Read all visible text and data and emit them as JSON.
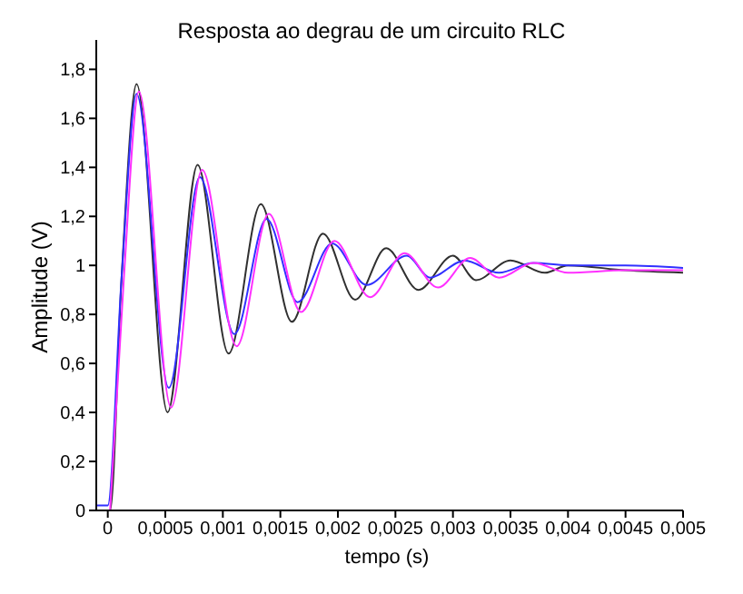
{
  "chart_data": {
    "type": "line",
    "title": "Resposta ao degrau de um circuito RLC",
    "xlabel": "tempo (s)",
    "ylabel": "Amplitude (V)",
    "xlim": [
      -0.0001,
      0.005
    ],
    "ylim": [
      0,
      1.92
    ],
    "xticks": [
      {
        "value": 0,
        "label": "0"
      },
      {
        "value": 0.0005,
        "label": "0,0005"
      },
      {
        "value": 0.001,
        "label": "0,001"
      },
      {
        "value": 0.0015,
        "label": "0,0015"
      },
      {
        "value": 0.002,
        "label": "0,002"
      },
      {
        "value": 0.0025,
        "label": "0,0025"
      },
      {
        "value": 0.003,
        "label": "0,003"
      },
      {
        "value": 0.0035,
        "label": "0,0035"
      },
      {
        "value": 0.004,
        "label": "0,004"
      },
      {
        "value": 0.0045,
        "label": "0,0045"
      },
      {
        "value": 0.005,
        "label": "0,005"
      }
    ],
    "yticks": [
      {
        "value": 0,
        "label": "0"
      },
      {
        "value": 0.2,
        "label": "0,2"
      },
      {
        "value": 0.4,
        "label": "0,4"
      },
      {
        "value": 0.6,
        "label": "0,6"
      },
      {
        "value": 0.8,
        "label": "0,8"
      },
      {
        "value": 1,
        "label": "1"
      },
      {
        "value": 1.2,
        "label": "1,2"
      },
      {
        "value": 1.4,
        "label": "1,4"
      },
      {
        "value": 1.6,
        "label": "1,6"
      },
      {
        "value": 1.8,
        "label": "1,8"
      }
    ],
    "grid": false,
    "legend": false,
    "marker": "none",
    "line_style": "solid",
    "series": [
      {
        "color": "#303030",
        "x": [
          -0.0001,
          2e-05,
          0.00012,
          0.00025,
          0.00052,
          0.00078,
          0.00105,
          0.00133,
          0.0016,
          0.00187,
          0.00215,
          0.00242,
          0.0027,
          0.003,
          0.0032,
          0.0035,
          0.0038,
          0.004,
          0.0045,
          0.005
        ],
        "values": [
          0,
          0,
          0.95,
          1.74,
          0.4,
          1.41,
          0.64,
          1.25,
          0.77,
          1.13,
          0.86,
          1.07,
          0.9,
          1.04,
          0.94,
          1.02,
          0.97,
          1,
          0.98,
          0.97
        ]
      },
      {
        "color": "#3030ff",
        "x": [
          -0.0001,
          0,
          0.00012,
          0.00025,
          0.00053,
          0.0008,
          0.0011,
          0.00138,
          0.00165,
          0.00195,
          0.00225,
          0.0026,
          0.0028,
          0.0031,
          0.0034,
          0.0037,
          0.004,
          0.0045,
          0.005
        ],
        "values": [
          0.02,
          0.02,
          0.95,
          1.7,
          0.5,
          1.36,
          0.72,
          1.19,
          0.85,
          1.09,
          0.92,
          1.04,
          0.95,
          1.02,
          0.97,
          1.01,
          1,
          1,
          0.99
        ]
      },
      {
        "color": "#ff30ff",
        "x": [
          2e-05,
          0.00014,
          0.00027,
          0.00055,
          0.00082,
          0.00112,
          0.0014,
          0.00168,
          0.00197,
          0.00228,
          0.00258,
          0.00287,
          0.00315,
          0.0034,
          0.0037,
          0.004,
          0.0045,
          0.005
        ],
        "values": [
          0,
          0.95,
          1.71,
          0.42,
          1.39,
          0.67,
          1.21,
          0.81,
          1.1,
          0.87,
          1.05,
          0.91,
          1.03,
          0.95,
          1.01,
          0.97,
          0.98,
          0.98
        ]
      }
    ]
  }
}
